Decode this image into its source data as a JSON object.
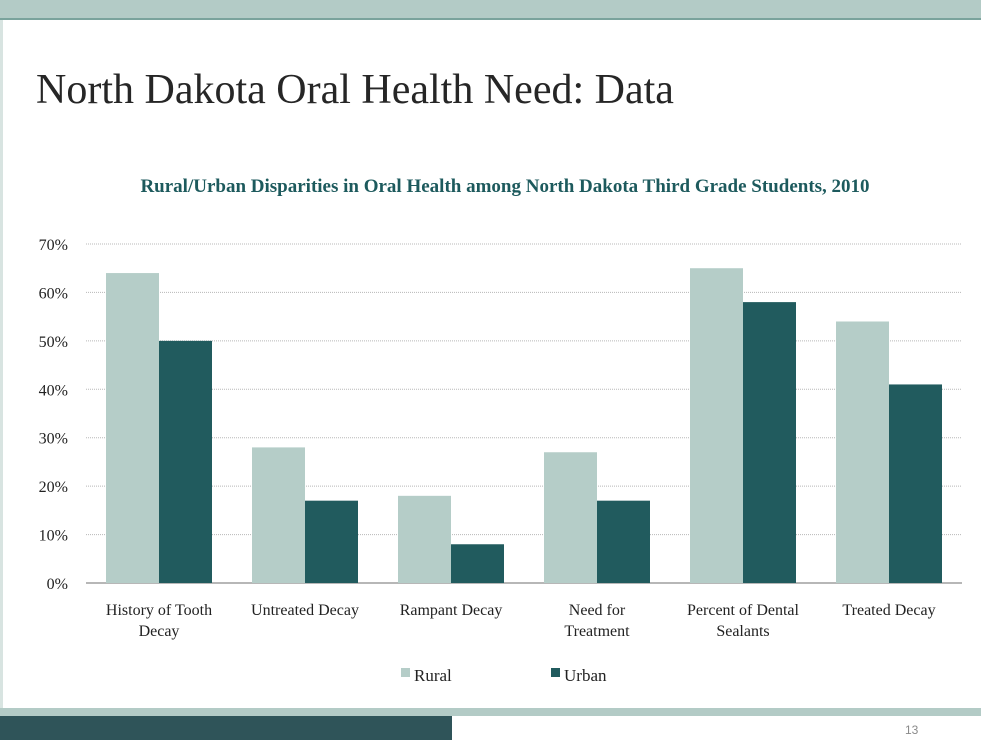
{
  "slide": {
    "title": "North Dakota Oral Health Need: Data",
    "page_number": "13"
  },
  "colors": {
    "rural": "#b5cdc8",
    "urban": "#215b5e",
    "title": "#1d5a5d",
    "band": "#b3cbc6",
    "band_dark": "#2f5459"
  },
  "chart_data": {
    "type": "bar",
    "title": "Rural/Urban Disparities in Oral Health among North Dakota Third Grade Students, 2010",
    "categories": [
      [
        "History of Tooth",
        "Decay"
      ],
      [
        "Untreated Decay"
      ],
      [
        "Rampant Decay"
      ],
      [
        "Need for",
        "Treatment"
      ],
      [
        "Percent of Dental",
        "Sealants"
      ],
      [
        "Treated Decay"
      ]
    ],
    "series": [
      {
        "name": "Rural",
        "values": [
          64,
          28,
          18,
          27,
          65,
          54
        ]
      },
      {
        "name": "Urban",
        "values": [
          50,
          17,
          8,
          17,
          58,
          41
        ]
      }
    ],
    "ylim": [
      0,
      70
    ],
    "yticks": [
      "0%",
      "10%",
      "20%",
      "30%",
      "40%",
      "50%",
      "60%",
      "70%"
    ],
    "grid": true,
    "legend": "bottom"
  }
}
